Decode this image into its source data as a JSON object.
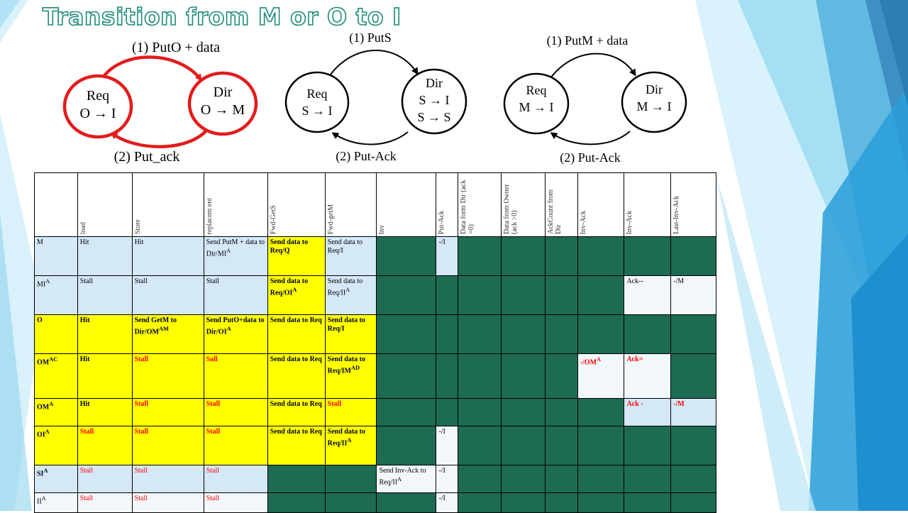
{
  "title": "Transition from M or O to I",
  "diagrams": [
    {
      "left_node": {
        "name": "Req",
        "state": "O → I"
      },
      "right_node": {
        "name": "Dir",
        "states": [
          "O → M"
        ]
      },
      "top_label": "(1) PutO + data",
      "bottom_label": "(2) Put_ack"
    },
    {
      "left_node": {
        "name": "Req",
        "state": "S → I"
      },
      "right_node": {
        "name": "Dir",
        "states": [
          "S → I",
          "S → S"
        ]
      },
      "top_label": "(1) PutS",
      "bottom_label": "(2) Put-Ack"
    },
    {
      "left_node": {
        "name": "Req",
        "state": "M → I"
      },
      "right_node": {
        "name": "Dir",
        "states": [
          "M → I"
        ]
      },
      "top_label": "(1) PutM + data",
      "bottom_label": "(2) Put-Ack"
    }
  ],
  "colors": {
    "red_arrow": "#e31b1b",
    "cell_green": "#1d6b52",
    "cell_yellow": "#ffff00",
    "cell_blue": "#d4e8f6",
    "title_stroke": "#1b8a7a"
  },
  "table": {
    "headers": [
      "",
      "load",
      "Store",
      "replacem ent",
      "Fwd-GetS",
      "Fwd-getM",
      "Inv",
      "Put-Ack",
      "Data form Dir (ack =0)",
      "Data from Owner (ack >0)",
      "AckCount from Dir",
      "Inv-Ack",
      "Inv-Ack",
      "Last-Inv-Ack"
    ],
    "rows": [
      {
        "state": "M",
        "state_sup": "",
        "load": "Hit",
        "store": "Hit",
        "replacement": "Send PutM + data to Dir/MI",
        "replacement_sup": "A",
        "fwd_gets": "Send data to Req/Q",
        "fwd_getm": "Send data to Req/I",
        "inv": "",
        "put_ack": "-/I",
        "inv_ack": "",
        "inv_ack2": "",
        "last_inv_ack": ""
      },
      {
        "state": "MI",
        "state_sup": "A",
        "load": "Stall",
        "store": "Stall",
        "replacement": "Stall",
        "replacement_sup": "",
        "fwd_gets": "Send data to Req/OI",
        "fwd_gets_sup": "A",
        "fwd_getm": "Send data to Req/II",
        "fwd_getm_sup": "A",
        "inv": "",
        "put_ack": "",
        "inv_ack": "",
        "inv_ack2": "Ack--",
        "last_inv_ack": "-/M"
      },
      {
        "state": "O",
        "state_sup": "",
        "load": "Hit",
        "store": "Send GetM to Dir/OM",
        "store_sup": "AM",
        "replacement": "Send PutO+data to Dir/OI",
        "replacement_sup": "A",
        "fwd_gets": "Send data to Req",
        "fwd_getm": "Send data to Req/I",
        "inv": "",
        "put_ack": "",
        "inv_ack": "",
        "inv_ack2": "",
        "last_inv_ack": ""
      },
      {
        "state": "OM",
        "state_sup": "AC",
        "load": "Hit",
        "store": "Stall",
        "replacement": "Sall",
        "replacement_sup": "",
        "fwd_gets": "Send data to Req",
        "fwd_getm": "Send data to Req/IM",
        "fwd_getm_sup": "AD",
        "inv": "",
        "put_ack": "",
        "inv_ack": "-/OM",
        "inv_ack_sup": "A",
        "inv_ack2": "Ack=",
        "last_inv_ack": ""
      },
      {
        "state": "OM",
        "state_sup": "A",
        "load": "Hit",
        "store": "Stall",
        "replacement": "Stall",
        "replacement_sup": "",
        "fwd_gets": "Send data to Req",
        "fwd_getm": "Stall",
        "inv": "",
        "put_ack": "",
        "inv_ack": "",
        "inv_ack2": "Ack -",
        "last_inv_ack": "-/M"
      },
      {
        "state": "OI",
        "state_sup": "A",
        "load": "Stall",
        "store": "Stall",
        "replacement": "Stall",
        "replacement_sup": "",
        "fwd_gets": "Send data to Req",
        "fwd_getm": "Send data to Req/II",
        "fwd_getm_sup": "A",
        "inv": "",
        "put_ack": "-/I",
        "inv_ack": "",
        "inv_ack2": "",
        "last_inv_ack": ""
      },
      {
        "state": "SI",
        "state_sup": "A",
        "load": "Stall",
        "store": "Stall",
        "replacement": "Stall",
        "replacement_sup": "",
        "fwd_gets": "",
        "fwd_getm": "",
        "inv": "Send Inv-Ack to Req/II",
        "inv_sup": "A",
        "put_ack": "-/I",
        "inv_ack": "",
        "inv_ack2": "",
        "last_inv_ack": ""
      },
      {
        "state": "II",
        "state_sup": "A",
        "load": "Stall",
        "store": "Stall",
        "replacement": "Stall",
        "replacement_sup": "",
        "fwd_gets": "",
        "fwd_getm": "",
        "inv": "",
        "put_ack": "-/I",
        "inv_ack": "",
        "inv_ack2": "",
        "last_inv_ack": ""
      }
    ]
  }
}
